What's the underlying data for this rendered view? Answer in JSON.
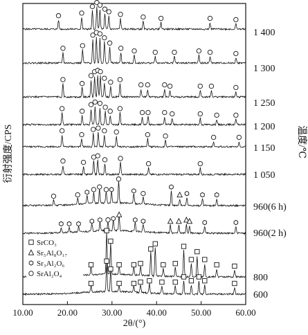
{
  "chart_data": {
    "type": "line",
    "xlabel": "2θ/(°)",
    "ylabel": "衍射强度/CPS",
    "right_axis_label": "温度/℃",
    "xlim": [
      10,
      60
    ],
    "xticks": [
      "10.00",
      "20.00",
      "30.00",
      "40.00",
      "50.00",
      "60.00"
    ],
    "legend": {
      "placement": "lower-left",
      "entries": [
        {
          "symbol": "square",
          "label": "SrCO₃"
        },
        {
          "symbol": "triangle",
          "label": "Sr₅Al₈O₁₇"
        },
        {
          "symbol": "hexagon",
          "label": "Sr₃Al₂O₆"
        },
        {
          "symbol": "circle",
          "label": "SrAl₂O₄"
        }
      ]
    },
    "series": [
      {
        "name": "1 400",
        "peaks": [
          {
            "x": 18.0,
            "h": 0.35,
            "m": "circle"
          },
          {
            "x": 23.2,
            "h": 0.45,
            "m": "circle"
          },
          {
            "x": 25.6,
            "h": 0.7,
            "m": "circle"
          },
          {
            "x": 26.6,
            "h": 0.85,
            "m": "circle"
          },
          {
            "x": 27.3,
            "h": 0.75,
            "m": "circle"
          },
          {
            "x": 28.4,
            "h": 0.6,
            "m": "circle"
          },
          {
            "x": 29.3,
            "h": 0.5,
            "m": "circle"
          },
          {
            "x": 31.9,
            "h": 0.4,
            "m": "circle"
          },
          {
            "x": 37.0,
            "h": 0.3,
            "m": "circle"
          },
          {
            "x": 41.0,
            "h": 0.25,
            "m": "circle"
          },
          {
            "x": 52.0,
            "h": 0.25,
            "m": "circle"
          },
          {
            "x": 57.8,
            "h": 0.2,
            "m": "circle"
          }
        ]
      },
      {
        "name": "1 300",
        "peaks": [
          {
            "x": 19.0,
            "h": 0.4,
            "m": "circle"
          },
          {
            "x": 23.4,
            "h": 0.5,
            "m": "circle"
          },
          {
            "x": 25.7,
            "h": 0.9,
            "m": "circle"
          },
          {
            "x": 26.5,
            "h": 1.0,
            "m": "circle"
          },
          {
            "x": 27.3,
            "h": 0.95,
            "m": "circle"
          },
          {
            "x": 28.3,
            "h": 0.8,
            "m": "circle"
          },
          {
            "x": 29.5,
            "h": 0.6,
            "m": "circle"
          },
          {
            "x": 32.0,
            "h": 0.4,
            "m": "circle"
          },
          {
            "x": 35.0,
            "h": 0.3,
            "m": "circle"
          },
          {
            "x": 39.7,
            "h": 0.25,
            "m": "circle"
          },
          {
            "x": 44.0,
            "h": 0.25,
            "m": "circle"
          },
          {
            "x": 49.5,
            "h": 0.3,
            "m": "circle"
          },
          {
            "x": 52.0,
            "h": 0.25,
            "m": "circle"
          },
          {
            "x": 57.8,
            "h": 0.2,
            "m": "circle"
          }
        ]
      },
      {
        "name": "1 250",
        "peaks": [
          {
            "x": 19.0,
            "h": 0.5,
            "m": "circle"
          },
          {
            "x": 23.3,
            "h": 0.35,
            "m": "circle"
          },
          {
            "x": 25.3,
            "h": 0.65,
            "m": "circle"
          },
          {
            "x": 26.1,
            "h": 0.8,
            "m": "circle"
          },
          {
            "x": 26.8,
            "h": 0.85,
            "m": "circle"
          },
          {
            "x": 27.4,
            "h": 0.8,
            "m": "circle"
          },
          {
            "x": 28.3,
            "h": 0.55,
            "m": "circle"
          },
          {
            "x": 29.7,
            "h": 0.4,
            "m": "circle"
          },
          {
            "x": 31.8,
            "h": 0.5,
            "m": "circle"
          },
          {
            "x": 36.5,
            "h": 0.3,
            "m": "circle"
          },
          {
            "x": 38.0,
            "h": 0.3,
            "m": "circle"
          },
          {
            "x": 41.8,
            "h": 0.3,
            "m": "circle"
          },
          {
            "x": 43.0,
            "h": 0.25,
            "m": "circle"
          },
          {
            "x": 49.8,
            "h": 0.25,
            "m": "circle"
          },
          {
            "x": 52.3,
            "h": 0.25,
            "m": "circle"
          },
          {
            "x": 57.8,
            "h": 0.2,
            "m": "circle"
          }
        ]
      },
      {
        "name": "1 200",
        "peaks": [
          {
            "x": 18.8,
            "h": 0.45,
            "m": "circle"
          },
          {
            "x": 23.3,
            "h": 0.35,
            "m": "circle"
          },
          {
            "x": 25.3,
            "h": 0.6,
            "m": "circle"
          },
          {
            "x": 26.2,
            "h": 0.7,
            "m": "circle"
          },
          {
            "x": 27.3,
            "h": 0.65,
            "m": "circle"
          },
          {
            "x": 28.5,
            "h": 0.5,
            "m": "circle"
          },
          {
            "x": 29.6,
            "h": 0.35,
            "m": "circle"
          },
          {
            "x": 31.8,
            "h": 0.45,
            "m": "circle"
          },
          {
            "x": 36.8,
            "h": 0.3,
            "m": "circle"
          },
          {
            "x": 38.1,
            "h": 0.3,
            "m": "circle"
          },
          {
            "x": 41.8,
            "h": 0.3,
            "m": "circle"
          },
          {
            "x": 43.5,
            "h": 0.25,
            "m": "circle"
          },
          {
            "x": 49.8,
            "h": 0.25,
            "m": "circle"
          },
          {
            "x": 53.5,
            "h": 0.2,
            "m": "circle"
          },
          {
            "x": 57.8,
            "h": 0.2,
            "m": "circle"
          }
        ]
      },
      {
        "name": "1 150",
        "peaks": [
          {
            "x": 18.8,
            "h": 0.45,
            "m": "circle"
          },
          {
            "x": 23.2,
            "h": 0.3,
            "m": "circle"
          },
          {
            "x": 25.8,
            "h": 0.5,
            "m": "circle"
          },
          {
            "x": 26.9,
            "h": 0.55,
            "m": "circle"
          },
          {
            "x": 28.3,
            "h": 0.45,
            "m": "circle"
          },
          {
            "x": 31.0,
            "h": 0.4,
            "m": "circle"
          },
          {
            "x": 38.0,
            "h": 0.3,
            "m": "circle"
          },
          {
            "x": 42.0,
            "h": 0.25,
            "m": "circle"
          },
          {
            "x": 52.8,
            "h": 0.2,
            "m": "circle"
          },
          {
            "x": 58.5,
            "h": 0.2,
            "m": "circle"
          }
        ]
      },
      {
        "name": "1 050",
        "peaks": [
          {
            "x": 19.0,
            "h": 0.35,
            "m": "circle"
          },
          {
            "x": 23.6,
            "h": 0.3,
            "m": "circle"
          },
          {
            "x": 25.9,
            "h": 0.5,
            "m": "circle"
          },
          {
            "x": 26.8,
            "h": 0.55,
            "m": "circle"
          },
          {
            "x": 28.4,
            "h": 0.4,
            "m": "circle"
          },
          {
            "x": 31.9,
            "h": 0.45,
            "m": "circle"
          },
          {
            "x": 38.2,
            "h": 0.25,
            "m": "circle"
          },
          {
            "x": 49.8,
            "h": 0.25,
            "m": "circle"
          }
        ]
      },
      {
        "name": "960(6 h)",
        "peaks": [
          {
            "x": 16.9,
            "h": 0.2,
            "m": "circle"
          },
          {
            "x": 22.3,
            "h": 0.25,
            "m": "circle"
          },
          {
            "x": 24.4,
            "h": 0.35,
            "m": "hexagon"
          },
          {
            "x": 25.9,
            "h": 0.45,
            "m": "circle"
          },
          {
            "x": 27.2,
            "h": 0.55,
            "m": "circle"
          },
          {
            "x": 28.7,
            "h": 0.45,
            "m": "circle"
          },
          {
            "x": 29.9,
            "h": 0.45,
            "m": "hexagon"
          },
          {
            "x": 31.5,
            "h": 0.85,
            "m": "circle"
          },
          {
            "x": 34.9,
            "h": 0.4,
            "m": "hexagon"
          },
          {
            "x": 37.0,
            "h": 0.3,
            "m": "circle"
          },
          {
            "x": 43.3,
            "h": 0.55,
            "m": "hexagon"
          },
          {
            "x": 45.2,
            "h": 0.25,
            "m": "triangle"
          },
          {
            "x": 46.8,
            "h": 0.3,
            "m": "hexagon"
          },
          {
            "x": 50.3,
            "h": 0.25,
            "m": "hexagon"
          },
          {
            "x": 53.5,
            "h": 0.25,
            "m": "hexagon"
          }
        ]
      },
      {
        "name": "960(2 h)",
        "peaks": [
          {
            "x": 18.6,
            "h": 0.2,
            "m": "hexagon"
          },
          {
            "x": 20.4,
            "h": 0.2,
            "m": "hexagon"
          },
          {
            "x": 22.5,
            "h": 0.2,
            "m": "hexagon"
          },
          {
            "x": 25.5,
            "h": 0.3,
            "m": "hexagon"
          },
          {
            "x": 27.3,
            "h": 0.35,
            "m": "hexagon"
          },
          {
            "x": 29.1,
            "h": 0.35,
            "m": "circle"
          },
          {
            "x": 30.3,
            "h": 0.4,
            "m": "hexagon"
          },
          {
            "x": 31.6,
            "h": 0.55,
            "m": "triangle"
          },
          {
            "x": 35.2,
            "h": 0.35,
            "m": "hexagon"
          },
          {
            "x": 37.0,
            "h": 0.3,
            "m": "hexagon"
          },
          {
            "x": 43.1,
            "h": 0.3,
            "m": "triangle"
          },
          {
            "x": 45.0,
            "h": 0.3,
            "m": "triangle"
          },
          {
            "x": 46.7,
            "h": 0.35,
            "m": "triangle"
          },
          {
            "x": 47.4,
            "h": 0.3,
            "m": "triangle"
          },
          {
            "x": 50.8,
            "h": 0.25,
            "m": "hexagon"
          },
          {
            "x": 57.8,
            "h": 0.25,
            "m": "hexagon"
          }
        ]
      },
      {
        "name": "800",
        "peaks": [
          {
            "x": 25.3,
            "h": 0.3,
            "m": "square"
          },
          {
            "x": 28.8,
            "h": 1.6,
            "m": "square"
          },
          {
            "x": 29.7,
            "h": 1.2,
            "m": "square"
          },
          {
            "x": 31.6,
            "h": 0.3,
            "m": "square"
          },
          {
            "x": 34.9,
            "h": 0.3,
            "m": "square"
          },
          {
            "x": 36.4,
            "h": 0.35,
            "m": "square"
          },
          {
            "x": 38.7,
            "h": 0.9,
            "m": "square"
          },
          {
            "x": 39.7,
            "h": 1.1,
            "m": "square"
          },
          {
            "x": 41.5,
            "h": 0.3,
            "m": "square"
          },
          {
            "x": 44.2,
            "h": 0.35,
            "m": "square"
          },
          {
            "x": 46.1,
            "h": 1.0,
            "m": "square"
          },
          {
            "x": 47.8,
            "h": 0.5,
            "m": "square"
          },
          {
            "x": 49.1,
            "h": 0.8,
            "m": "square"
          },
          {
            "x": 50.8,
            "h": 0.5,
            "m": "square"
          },
          {
            "x": 53.5,
            "h": 0.3,
            "m": "square"
          },
          {
            "x": 57.5,
            "h": 0.25,
            "m": "square"
          }
        ]
      },
      {
        "name": "600",
        "peaks": [
          {
            "x": 25.3,
            "h": 0.25,
            "m": "square"
          },
          {
            "x": 28.8,
            "h": 1.1,
            "m": "square"
          },
          {
            "x": 29.7,
            "h": 0.8,
            "m": "square"
          },
          {
            "x": 31.6,
            "h": 0.25,
            "m": "square"
          },
          {
            "x": 34.9,
            "h": 0.25,
            "m": "square"
          },
          {
            "x": 36.4,
            "h": 0.3,
            "m": "square"
          },
          {
            "x": 38.4,
            "h": 0.35,
            "m": "square"
          },
          {
            "x": 41.2,
            "h": 0.3,
            "m": "square"
          },
          {
            "x": 44.2,
            "h": 0.3,
            "m": "square"
          },
          {
            "x": 46.1,
            "h": 0.5,
            "m": "square"
          },
          {
            "x": 47.8,
            "h": 0.35,
            "m": "square"
          },
          {
            "x": 49.5,
            "h": 0.5,
            "m": "square"
          },
          {
            "x": 50.8,
            "h": 0.35,
            "m": "square"
          },
          {
            "x": 57.5,
            "h": 0.25,
            "m": "square"
          }
        ]
      }
    ]
  }
}
